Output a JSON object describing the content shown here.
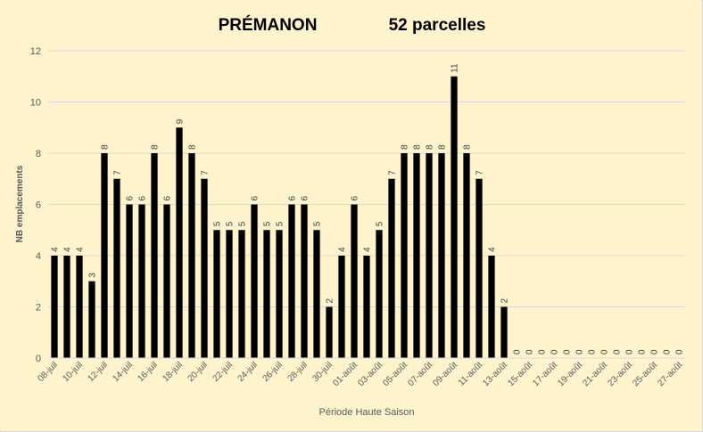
{
  "page": {
    "background_color": "#FEF3CC"
  },
  "chart_data": {
    "type": "bar",
    "title": "PRÉMANON",
    "subtitle": "52 parcelles",
    "xlabel": "Période Haute Saison",
    "ylabel": "NB emplacements",
    "ylim": [
      0,
      12
    ],
    "y_ticks": [
      0,
      2,
      4,
      6,
      8,
      10,
      12
    ],
    "grid": true,
    "legend": "none",
    "bar_color": "#000000",
    "grid_color": "#D9D9D9",
    "categories": [
      "08-juil",
      "09-juil",
      "10-juil",
      "11-juil",
      "12-juil",
      "13-juil",
      "14-juil",
      "15-juil",
      "16-juil",
      "17-juil",
      "18-juil",
      "19-juil",
      "20-juil",
      "21-juil",
      "22-juil",
      "23-juil",
      "24-juil",
      "25-juil",
      "26-juil",
      "27-juil",
      "28-juil",
      "29-juil",
      "30-juil",
      "31-juil",
      "01-août",
      "02-août",
      "03-août",
      "04-août",
      "05-août",
      "06-août",
      "07-août",
      "08-août",
      "09-août",
      "10-août",
      "11-août",
      "12-août",
      "13-août",
      "14-août",
      "15-août",
      "16-août",
      "17-août",
      "18-août",
      "19-août",
      "20-août",
      "21-août",
      "22-août",
      "23-août",
      "24-août",
      "25-août",
      "26-août",
      "27-août"
    ],
    "x_tick_labels": [
      "08-juil",
      "10-juil",
      "12-juil",
      "14-juil",
      "16-juil",
      "18-juil",
      "20-juil",
      "22-juil",
      "24-juil",
      "26-juil",
      "28-juil",
      "30-juil",
      "01-août",
      "03-août",
      "05-août",
      "07-août",
      "09-août",
      "11-août",
      "13-août",
      "15-août",
      "17-août",
      "19-août",
      "21-août",
      "23-août",
      "25-août",
      "27-août"
    ],
    "values": [
      4,
      4,
      4,
      3,
      8,
      7,
      6,
      6,
      8,
      6,
      9,
      8,
      7,
      5,
      5,
      5,
      6,
      5,
      5,
      6,
      6,
      5,
      2,
      4,
      6,
      4,
      5,
      7,
      8,
      8,
      8,
      8,
      11,
      8,
      7,
      4,
      2,
      0,
      0,
      0,
      0,
      0,
      0,
      0,
      0,
      0,
      0,
      0,
      0,
      0,
      0
    ]
  }
}
